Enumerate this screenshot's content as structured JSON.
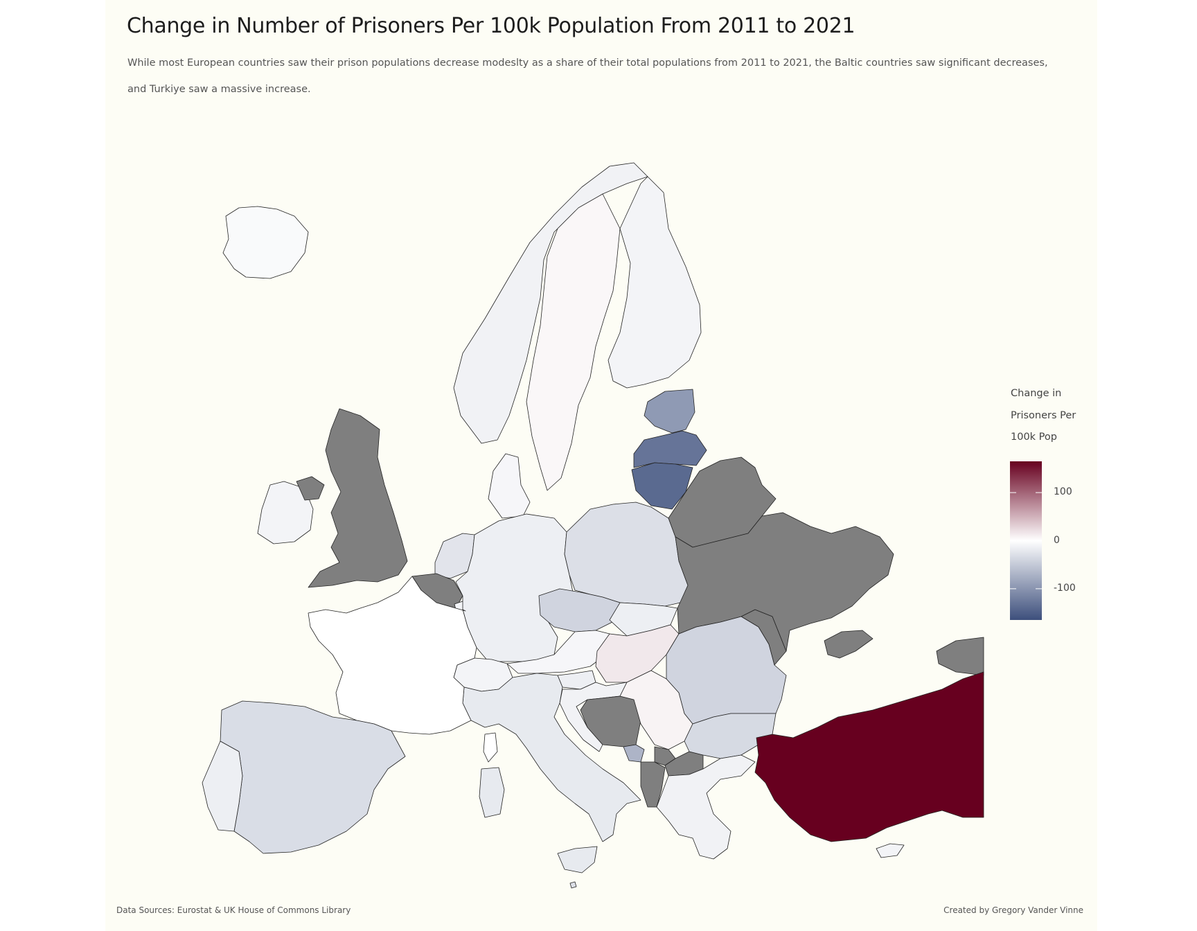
{
  "title": "Change in Number of Prisoners Per 100k Population From 2011 to 2021",
  "subtitle": "While most European countries saw their prison populations decrease modeslty as a share of their total populations from 2011 to 2021, the Baltic countries saw significant decreases, and Turkiye saw a massive increase.",
  "legend": {
    "title": "Change in Prisoners Per 100k Pop",
    "ticks": [
      {
        "label": "100",
        "value": 100
      },
      {
        "label": "0",
        "value": 0
      },
      {
        "label": "-100",
        "value": -100
      }
    ],
    "range": [
      -165,
      165
    ],
    "colors": {
      "low": "#3d4f7c",
      "mid": "#ffffff",
      "high": "#67001f"
    }
  },
  "colors": {
    "background": "#fdfdf5",
    "no_data": "#7f7f7f",
    "border": "#222222"
  },
  "regions": [
    {
      "id": "iceland",
      "value": -5
    },
    {
      "id": "norway",
      "value": -12
    },
    {
      "id": "sweden",
      "value": 5
    },
    {
      "id": "finland",
      "value": -10
    },
    {
      "id": "estonia",
      "value": -95
    },
    {
      "id": "latvia",
      "value": -130
    },
    {
      "id": "lithuania",
      "value": -140
    },
    {
      "id": "denmark",
      "value": -8
    },
    {
      "id": "ireland",
      "value": -10
    },
    {
      "id": "netherlands",
      "value": -25
    },
    {
      "id": "germany",
      "value": -15
    },
    {
      "id": "poland",
      "value": -30
    },
    {
      "id": "czechia",
      "value": -40
    },
    {
      "id": "slovakia",
      "value": -15
    },
    {
      "id": "hungary",
      "value": 15
    },
    {
      "id": "austria",
      "value": -8
    },
    {
      "id": "switzerland",
      "value": -10
    },
    {
      "id": "slovenia",
      "value": -15
    },
    {
      "id": "croatia",
      "value": -12
    },
    {
      "id": "serbia",
      "value": 8
    },
    {
      "id": "montenegro",
      "value": -70
    },
    {
      "id": "romania",
      "value": -40
    },
    {
      "id": "bulgaria",
      "value": -35
    },
    {
      "id": "greece",
      "value": -12
    },
    {
      "id": "italy",
      "value": -20
    },
    {
      "id": "france",
      "value": 0
    },
    {
      "id": "spain",
      "value": -32
    },
    {
      "id": "portugal",
      "value": -15
    },
    {
      "id": "turkiye",
      "value": 165
    },
    {
      "id": "malta",
      "value": -30
    },
    {
      "id": "sardinia",
      "value": -20
    },
    {
      "id": "sicily",
      "value": -20
    },
    {
      "id": "corsica",
      "value": 0
    },
    {
      "id": "luxembourg",
      "value": -10
    },
    {
      "id": "uk",
      "value": null
    },
    {
      "id": "northern-ireland",
      "value": null
    },
    {
      "id": "belgium",
      "value": null
    },
    {
      "id": "belarus",
      "value": null
    },
    {
      "id": "ukraine",
      "value": null
    },
    {
      "id": "moldova",
      "value": null
    },
    {
      "id": "bosnia",
      "value": null
    },
    {
      "id": "albania",
      "value": null
    },
    {
      "id": "north-macedonia",
      "value": null
    },
    {
      "id": "kosovo",
      "value": null
    },
    {
      "id": "crimea",
      "value": null
    },
    {
      "id": "georgia-fragment",
      "value": null
    },
    {
      "id": "cyprus",
      "value": -10
    }
  ],
  "footer": {
    "source": "Data Sources: Eurostat & UK House of Commons Library",
    "credit": "Created by Gregory Vander Vinne"
  }
}
